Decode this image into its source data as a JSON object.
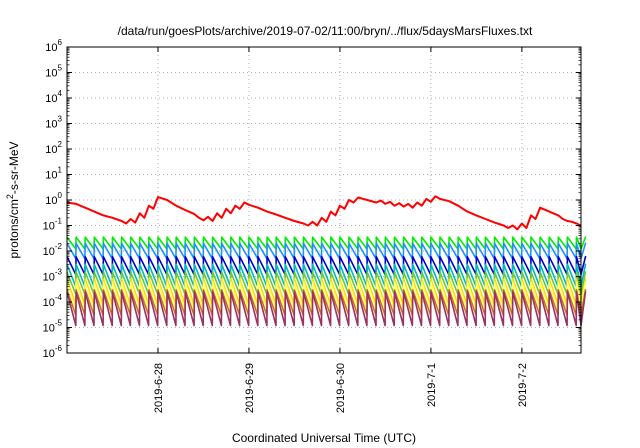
{
  "chart_data": {
    "type": "line",
    "title": "/data/run/goesPlots/archive/2019-07-02/11:00/bryn/../flux/5daysMarsFluxes.txt",
    "xlabel": "Coordinated Universal Time (UTC)",
    "ylabel": {
      "base": "protons/cm",
      "sup": "2",
      "rest": "-s-sr-MeV"
    },
    "y_scale": "log",
    "ylim": [
      1e-06,
      1000000.0
    ],
    "y_ticks": [
      {
        "value": 1e-06,
        "base": "10",
        "exp": "-6"
      },
      {
        "value": 1e-05,
        "base": "10",
        "exp": "-5"
      },
      {
        "value": 0.0001,
        "base": "10",
        "exp": "-4"
      },
      {
        "value": 0.001,
        "base": "10",
        "exp": "-3"
      },
      {
        "value": 0.01,
        "base": "10",
        "exp": "-2"
      },
      {
        "value": 0.1,
        "base": "10",
        "exp": "-1"
      },
      {
        "value": 1.0,
        "base": "10",
        "exp": "0"
      },
      {
        "value": 10.0,
        "base": "10",
        "exp": "1"
      },
      {
        "value": 100.0,
        "base": "10",
        "exp": "2"
      },
      {
        "value": 1000.0,
        "base": "10",
        "exp": "3"
      },
      {
        "value": 10000.0,
        "base": "10",
        "exp": "4"
      },
      {
        "value": 100000.0,
        "base": "10",
        "exp": "5"
      },
      {
        "value": 1000000.0,
        "base": "10",
        "exp": "6"
      }
    ],
    "xlim": [
      0,
      5.65
    ],
    "x_ticks": [
      {
        "value": 1.0,
        "label": "2019-6-28"
      },
      {
        "value": 2.0,
        "label": "2019-6-29"
      },
      {
        "value": 3.0,
        "label": "2019-6-30"
      },
      {
        "value": 4.0,
        "label": "2019-7-1"
      },
      {
        "value": 5.0,
        "label": "2019-7-2"
      }
    ],
    "grid": true,
    "series": [
      {
        "color": "#ff0000",
        "points": [
          [
            0.0,
            0.8
          ],
          [
            0.1,
            0.7
          ],
          [
            0.2,
            0.5
          ],
          [
            0.3,
            0.35
          ],
          [
            0.4,
            0.25
          ],
          [
            0.5,
            0.2
          ],
          [
            0.6,
            0.15
          ],
          [
            0.65,
            0.12
          ],
          [
            0.7,
            0.18
          ],
          [
            0.75,
            0.13
          ],
          [
            0.8,
            0.3
          ],
          [
            0.85,
            0.2
          ],
          [
            0.9,
            0.6
          ],
          [
            0.95,
            0.45
          ],
          [
            1.0,
            1.3
          ],
          [
            1.1,
            1.0
          ],
          [
            1.2,
            0.6
          ],
          [
            1.3,
            0.4
          ],
          [
            1.4,
            0.28
          ],
          [
            1.45,
            0.2
          ],
          [
            1.5,
            0.16
          ],
          [
            1.55,
            0.22
          ],
          [
            1.6,
            0.15
          ],
          [
            1.65,
            0.3
          ],
          [
            1.7,
            0.2
          ],
          [
            1.75,
            0.45
          ],
          [
            1.8,
            0.3
          ],
          [
            1.85,
            0.6
          ],
          [
            1.9,
            0.45
          ],
          [
            1.95,
            0.8
          ],
          [
            2.0,
            0.65
          ],
          [
            2.1,
            0.5
          ],
          [
            2.2,
            0.35
          ],
          [
            2.3,
            0.27
          ],
          [
            2.4,
            0.2
          ],
          [
            2.5,
            0.15
          ],
          [
            2.6,
            0.12
          ],
          [
            2.65,
            0.1
          ],
          [
            2.7,
            0.14
          ],
          [
            2.75,
            0.1
          ],
          [
            2.8,
            0.2
          ],
          [
            2.85,
            0.14
          ],
          [
            2.9,
            0.35
          ],
          [
            2.95,
            0.25
          ],
          [
            3.0,
            0.6
          ],
          [
            3.05,
            0.45
          ],
          [
            3.1,
            1.0
          ],
          [
            3.15,
            0.8
          ],
          [
            3.2,
            1.25
          ],
          [
            3.3,
            1.0
          ],
          [
            3.4,
            0.8
          ],
          [
            3.45,
            0.95
          ],
          [
            3.5,
            0.7
          ],
          [
            3.55,
            0.85
          ],
          [
            3.6,
            0.6
          ],
          [
            3.65,
            0.75
          ],
          [
            3.7,
            0.55
          ],
          [
            3.75,
            0.7
          ],
          [
            3.8,
            0.5
          ],
          [
            3.85,
            0.8
          ],
          [
            3.9,
            0.6
          ],
          [
            3.95,
            1.1
          ],
          [
            4.0,
            0.85
          ],
          [
            4.05,
            1.4
          ],
          [
            4.1,
            1.1
          ],
          [
            4.2,
            0.9
          ],
          [
            4.3,
            0.6
          ],
          [
            4.4,
            0.35
          ],
          [
            4.5,
            0.25
          ],
          [
            4.6,
            0.18
          ],
          [
            4.7,
            0.13
          ],
          [
            4.8,
            0.1
          ],
          [
            4.85,
            0.08
          ],
          [
            4.9,
            0.1
          ],
          [
            4.95,
            0.07
          ],
          [
            5.0,
            0.12
          ],
          [
            5.05,
            0.08
          ],
          [
            5.1,
            0.25
          ],
          [
            5.15,
            0.18
          ],
          [
            5.2,
            0.5
          ],
          [
            5.3,
            0.35
          ],
          [
            5.4,
            0.25
          ],
          [
            5.45,
            0.18
          ],
          [
            5.5,
            0.15
          ],
          [
            5.55,
            0.14
          ],
          [
            5.6,
            0.12
          ],
          [
            5.65,
            0.1
          ]
        ]
      },
      {
        "color": "#00ee00",
        "sawtooth": {
          "period": 0.1,
          "peak": 0.035,
          "trough": 0.012,
          "drift": 0.0
        }
      },
      {
        "color": "#1f8fff",
        "sawtooth": {
          "period": 0.1,
          "peak": 0.02,
          "trough": 0.005,
          "drift": 0.0
        }
      },
      {
        "color": "#0000cc",
        "sawtooth": {
          "period": 0.1,
          "peak": 0.006,
          "trough": 0.0012,
          "drift": 0.0
        }
      },
      {
        "color": "#00bbbb",
        "sawtooth": {
          "period": 0.1,
          "peak": 0.003,
          "trough": 0.0004,
          "drift": 0.0
        }
      },
      {
        "color": "#66cc33",
        "sawtooth": {
          "period": 0.1,
          "peak": 0.0015,
          "trough": 0.0002,
          "drift": 0.0
        }
      },
      {
        "color": "#ffd700",
        "sawtooth": {
          "period": 0.1,
          "peak": 0.0008,
          "trough": 8e-05,
          "drift": 0.0
        }
      },
      {
        "color": "#ffff66",
        "sawtooth": {
          "period": 0.1,
          "peak": 0.0006,
          "trough": 5e-05,
          "drift": 0.0
        }
      },
      {
        "color": "#d07020",
        "sawtooth": {
          "period": 0.1,
          "peak": 0.0003,
          "trough": 3e-05,
          "drift": 0.0
        }
      },
      {
        "color": "#993366",
        "sawtooth": {
          "period": 0.1,
          "peak": 0.00025,
          "trough": 1.2e-05,
          "drift": 0.0
        }
      }
    ]
  }
}
